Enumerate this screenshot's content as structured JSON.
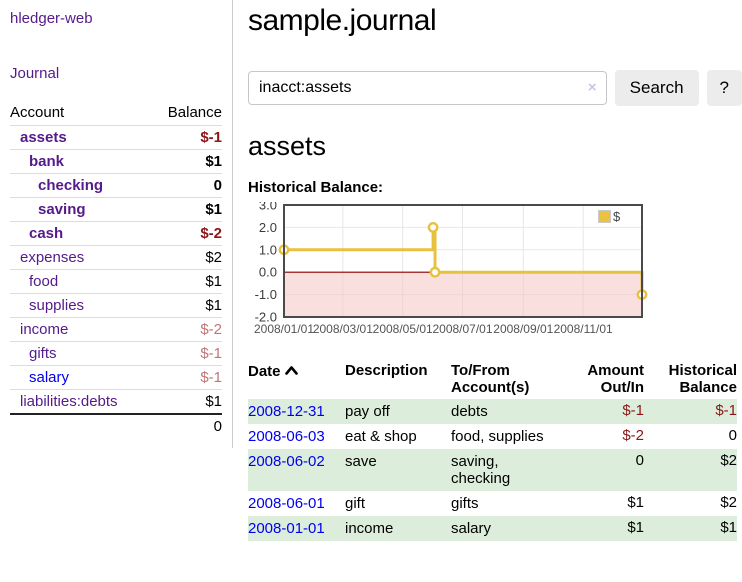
{
  "app": {
    "brand": "hledger-web",
    "nav_journal": "Journal"
  },
  "sidebar": {
    "header": {
      "account": "Account",
      "balance": "Balance"
    },
    "rows": [
      {
        "name": "assets",
        "balance": "$-1"
      },
      {
        "name": "bank",
        "balance": "$1"
      },
      {
        "name": "checking",
        "balance": "0"
      },
      {
        "name": "saving",
        "balance": "$1"
      },
      {
        "name": "cash",
        "balance": "$-2"
      },
      {
        "name": "expenses",
        "balance": "$2"
      },
      {
        "name": "food",
        "balance": "$1"
      },
      {
        "name": "supplies",
        "balance": "$1"
      },
      {
        "name": "income",
        "balance": "$-2"
      },
      {
        "name": "gifts",
        "balance": "$-1"
      },
      {
        "name": "salary",
        "balance": "$-1"
      },
      {
        "name": "liabilities:debts",
        "balance": "$1"
      }
    ],
    "total": "0"
  },
  "header": {
    "title": "sample.journal"
  },
  "search": {
    "value": "inacct:assets",
    "clear_icon": "×",
    "button_label": "Search",
    "help_label": "?"
  },
  "account_page": {
    "title": "assets",
    "chart_label": "Historical Balance:"
  },
  "chart_data": {
    "type": "line",
    "subtype": "step-after",
    "series": [
      {
        "name": "$",
        "points": [
          [
            "2008-01-01",
            1
          ],
          [
            "2008-06-01",
            2
          ],
          [
            "2008-06-03",
            0
          ],
          [
            "2008-12-31",
            -1
          ]
        ]
      }
    ],
    "xlim": [
      "2008-01-01",
      "2008-12-31"
    ],
    "ylim": [
      -2,
      3
    ],
    "y_ticks": [
      3.0,
      2.0,
      1.0,
      0.0,
      -1.0,
      -2.0
    ],
    "x_ticks": [
      {
        "date": "2008-01-01",
        "label": "2008/01/01"
      },
      {
        "date": "2008-03-01",
        "label": "2008/03/01"
      },
      {
        "date": "2008-05-01",
        "label": "2008/05/01"
      },
      {
        "date": "2008-07-01",
        "label": "2008/07/01"
      },
      {
        "date": "2008-09-01",
        "label": "2008/09/01"
      },
      {
        "date": "2008-11-01",
        "label": "2008/11/01"
      }
    ],
    "grid": true,
    "legend_position": "top-right",
    "colors": {
      "series": "#e8c13f",
      "marker_fill": "#ffffff",
      "negative_region": "#f5c4c4",
      "zero_line": "#8b0000",
      "grid": "#e7e7e7",
      "border": "#4a4a4a",
      "tick_text": "#545454"
    }
  },
  "register": {
    "columns": {
      "date": "Date",
      "description": "Description",
      "accounts": "To/From Account(s)",
      "amount": "Amount Out/In",
      "balance": "Historical Balance"
    },
    "rows": [
      {
        "date": "2008-12-31",
        "description": "pay off",
        "accounts": "debts",
        "amount": "$-1",
        "balance": "$-1"
      },
      {
        "date": "2008-06-03",
        "description": "eat & shop",
        "accounts": "food, supplies",
        "amount": "$-2",
        "balance": "0"
      },
      {
        "date": "2008-06-02",
        "description": "save",
        "accounts": "saving, checking",
        "amount": "0",
        "balance": "$2"
      },
      {
        "date": "2008-06-01",
        "description": "gift",
        "accounts": "gifts",
        "amount": "$1",
        "balance": "$2"
      },
      {
        "date": "2008-01-01",
        "description": "income",
        "accounts": "salary",
        "amount": "$1",
        "balance": "$1"
      }
    ]
  },
  "colors": {
    "link_purple": "#551A8B",
    "link_blue": "#0000EE",
    "negative_strong": "#8b1616",
    "negative_soft": "#c07676",
    "row_green": "#dceedb",
    "button_gray": "#ececec"
  }
}
